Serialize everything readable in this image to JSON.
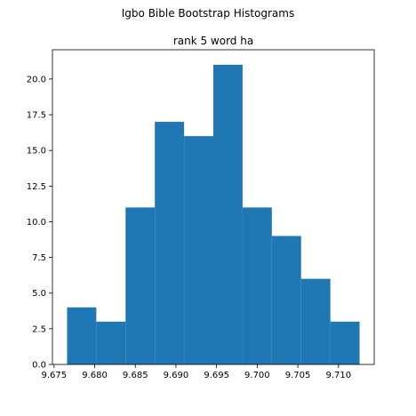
{
  "figure": {
    "suptitle": "Igbo Bible Bootstrap Histograms"
  },
  "chart_data": {
    "type": "bar",
    "histogram": true,
    "title": "rank 5 word ha",
    "xlabel": "",
    "ylabel": "",
    "bin_edges": [
      9.6766,
      9.6802,
      9.6838,
      9.6874,
      9.691,
      9.6946,
      9.6982,
      9.7018,
      9.7054,
      9.709,
      9.7126
    ],
    "counts": [
      4,
      3,
      11,
      17,
      16,
      21,
      11,
      9,
      6,
      3
    ],
    "xlim": [
      9.6748,
      9.7144
    ],
    "ylim": [
      0,
      22.05
    ],
    "xticks": [
      9.675,
      9.68,
      9.685,
      9.69,
      9.695,
      9.7,
      9.705,
      9.71
    ],
    "xtick_labels": [
      "9.675",
      "9.680",
      "9.685",
      "9.690",
      "9.695",
      "9.700",
      "9.705",
      "9.710"
    ],
    "yticks": [
      0,
      2.5,
      5,
      7.5,
      10,
      12.5,
      15,
      17.5,
      20
    ],
    "ytick_labels": [
      "0.0",
      "2.5",
      "5.0",
      "7.5",
      "10.0",
      "12.5",
      "15.0",
      "17.5",
      "20.0"
    ],
    "bar_color": "#1f77b4",
    "grid": false,
    "legend": "none"
  }
}
